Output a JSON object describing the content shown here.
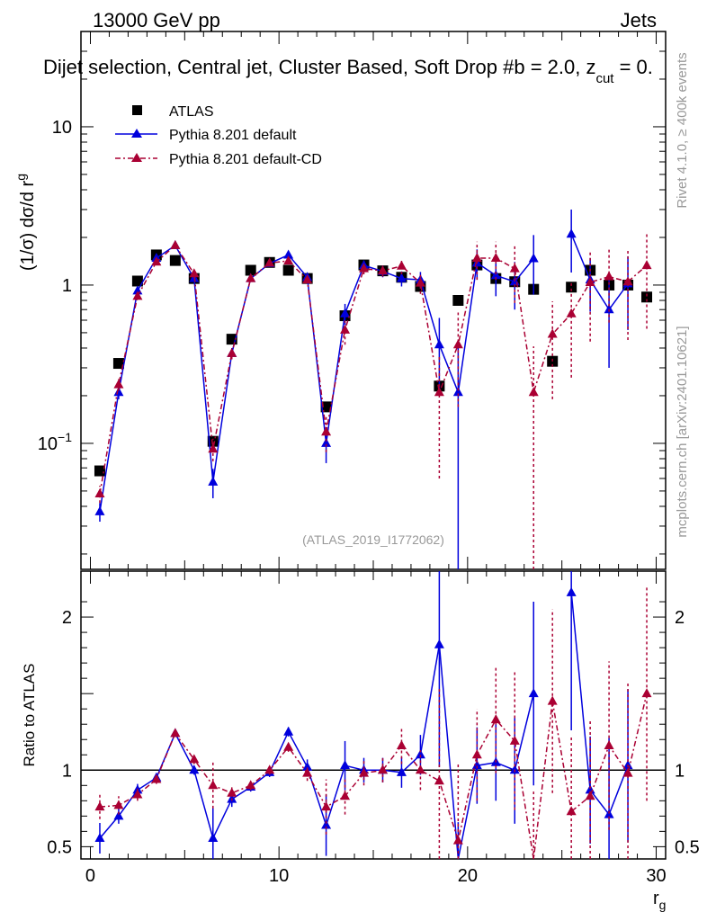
{
  "header": {
    "left": "13000 GeV pp",
    "right": "Jets",
    "selection": "Dijet selection, Central jet, Cluster Based, Soft Drop #b = 2.0, z",
    "selection_sub": "cut",
    "selection_tail": " = 0.",
    "watermark": "(ATLAS_2019_I1772062)",
    "rivet": "Rivet 4.1.0, ≥ 400k events",
    "mcplots": "mcplots.cern.ch [arXiv:2401.10621]"
  },
  "axes": {
    "main_ylabel": "(1/σ) dσ/d r",
    "main_ylabel_sub": "g",
    "ratio_ylabel": "Ratio to ATLAS",
    "xlabel": "r",
    "xlabel_sub": "g",
    "main_yticks": [
      {
        "value": 0.1,
        "label": "10",
        "sup": "−1"
      },
      {
        "value": 1,
        "label": "1",
        "sup": ""
      },
      {
        "value": 10,
        "label": "10",
        "sup": ""
      }
    ],
    "ratio_yticks": [
      {
        "value": 0.5,
        "label": "0.5"
      },
      {
        "value": 1,
        "label": "1"
      },
      {
        "value": 2,
        "label": "2"
      }
    ],
    "xticks": [
      {
        "value": 0,
        "label": "0"
      },
      {
        "value": 10,
        "label": "10"
      },
      {
        "value": 20,
        "label": "20"
      },
      {
        "value": 30,
        "label": "30"
      }
    ]
  },
  "legend": [
    {
      "key": "atlas",
      "label": "ATLAS"
    },
    {
      "key": "pyd",
      "label": "Pythia 8.201 default"
    },
    {
      "key": "pycd",
      "label": "Pythia 8.201 default-CD"
    }
  ],
  "colors": {
    "atlas": "#000000",
    "pyd": "#0000dd",
    "pycd": "#aa0033"
  },
  "chart_data": {
    "type": "line",
    "title": "Dijet selection, Central jet, Cluster Based, Soft Drop #b = 2.0, z_cut = 0.",
    "xlabel": "r_g",
    "ylabel": "(1/σ) dσ/d r_g",
    "xlim": [
      -0.5,
      30.5
    ],
    "ylim": [
      0.016,
      40
    ],
    "yscale": "log",
    "ratio_ylim": [
      0.42,
      2.3
    ],
    "x": [
      0.5,
      1.5,
      2.5,
      3.5,
      4.5,
      5.5,
      6.5,
      7.5,
      8.5,
      9.5,
      10.5,
      11.5,
      12.5,
      13.5,
      14.5,
      15.5,
      16.5,
      17.5,
      18.5,
      19.5,
      20.5,
      21.5,
      22.5,
      23.5,
      24.5,
      25.5,
      26.5,
      27.5,
      28.5,
      29.5
    ],
    "series": [
      {
        "name": "ATLAS",
        "key": "atlas",
        "values": [
          0.067,
          0.32,
          1.06,
          1.55,
          1.43,
          1.1,
          0.103,
          0.455,
          1.24,
          1.39,
          1.24,
          1.1,
          0.17,
          0.64,
          1.34,
          1.23,
          1.12,
          0.98,
          0.23,
          0.8,
          1.34,
          1.1,
          1.05,
          0.94,
          0.33,
          0.97,
          1.24,
          1.0,
          1.0,
          0.84
        ]
      },
      {
        "name": "Pythia 8.201 default",
        "key": "pyd",
        "values": [
          0.037,
          0.21,
          0.92,
          1.48,
          1.78,
          1.1,
          0.057,
          0.37,
          1.1,
          1.37,
          1.55,
          1.12,
          0.1,
          0.66,
          1.33,
          1.22,
          1.1,
          1.08,
          0.42,
          0.21,
          1.38,
          1.15,
          1.05,
          1.47,
          null,
          2.1,
          1.08,
          0.7,
          1.02,
          null
        ],
        "err": [
          0.005,
          0.02,
          0.04,
          0.04,
          0.03,
          0.03,
          0.012,
          0.03,
          0.03,
          0.03,
          0.04,
          0.05,
          0.025,
          0.1,
          0.1,
          0.1,
          0.12,
          0.13,
          0.2,
          0.21,
          0.3,
          0.3,
          0.35,
          0.6,
          null,
          0.9,
          0.4,
          0.4,
          0.5,
          null
        ],
        "ratio": [
          0.555,
          0.7,
          0.87,
          0.95,
          1.24,
          1.0,
          0.555,
          0.81,
          0.89,
          0.985,
          1.25,
          1.02,
          0.64,
          1.03,
          1.0,
          1.0,
          0.985,
          1.1,
          1.82,
          0.26,
          1.03,
          1.05,
          1.0,
          1.5,
          null,
          2.16,
          0.87,
          0.71,
          1.03,
          null
        ],
        "ratio_err": [
          0.1,
          0.05,
          0.04,
          0.03,
          0.02,
          0.03,
          0.2,
          0.05,
          0.03,
          0.03,
          0.03,
          0.05,
          0.2,
          0.16,
          0.08,
          0.08,
          0.1,
          0.13,
          0.8,
          0.4,
          0.25,
          0.25,
          0.35,
          0.6,
          null,
          0.9,
          0.35,
          0.5,
          0.5,
          null
        ]
      },
      {
        "name": "Pythia 8.201 default-CD",
        "key": "pycd",
        "values": [
          0.048,
          0.235,
          0.85,
          1.4,
          1.78,
          1.18,
          0.092,
          0.37,
          1.1,
          1.38,
          1.42,
          1.08,
          0.118,
          0.52,
          1.27,
          1.23,
          1.32,
          1.03,
          0.21,
          0.42,
          1.48,
          1.48,
          1.27,
          0.21,
          0.49,
          0.66,
          1.04,
          1.13,
          1.05,
          1.33
        ],
        "err": [
          0.006,
          0.02,
          0.04,
          0.04,
          0.03,
          0.03,
          0.015,
          0.03,
          0.03,
          0.03,
          0.04,
          0.05,
          0.03,
          0.1,
          0.1,
          0.1,
          0.15,
          0.15,
          0.15,
          0.25,
          0.4,
          0.4,
          0.5,
          0.2,
          0.3,
          0.4,
          0.6,
          0.55,
          0.6,
          0.8
        ],
        "ratio": [
          0.76,
          0.77,
          0.84,
          0.94,
          1.24,
          1.07,
          0.9,
          0.85,
          0.9,
          1.0,
          1.15,
          0.98,
          0.76,
          0.83,
          0.98,
          1.0,
          1.16,
          1.0,
          0.93,
          0.54,
          1.1,
          1.33,
          1.19,
          0.26,
          1.45,
          0.73,
          0.83,
          1.16,
          0.98,
          1.5
        ],
        "ratio_err": [
          0.08,
          0.06,
          0.04,
          0.03,
          0.02,
          0.03,
          0.15,
          0.05,
          0.03,
          0.03,
          0.03,
          0.05,
          0.18,
          0.12,
          0.08,
          0.08,
          0.12,
          0.13,
          0.6,
          0.5,
          0.3,
          0.35,
          0.45,
          0.6,
          0.6,
          0.5,
          0.5,
          0.55,
          0.6,
          0.7
        ]
      }
    ]
  }
}
